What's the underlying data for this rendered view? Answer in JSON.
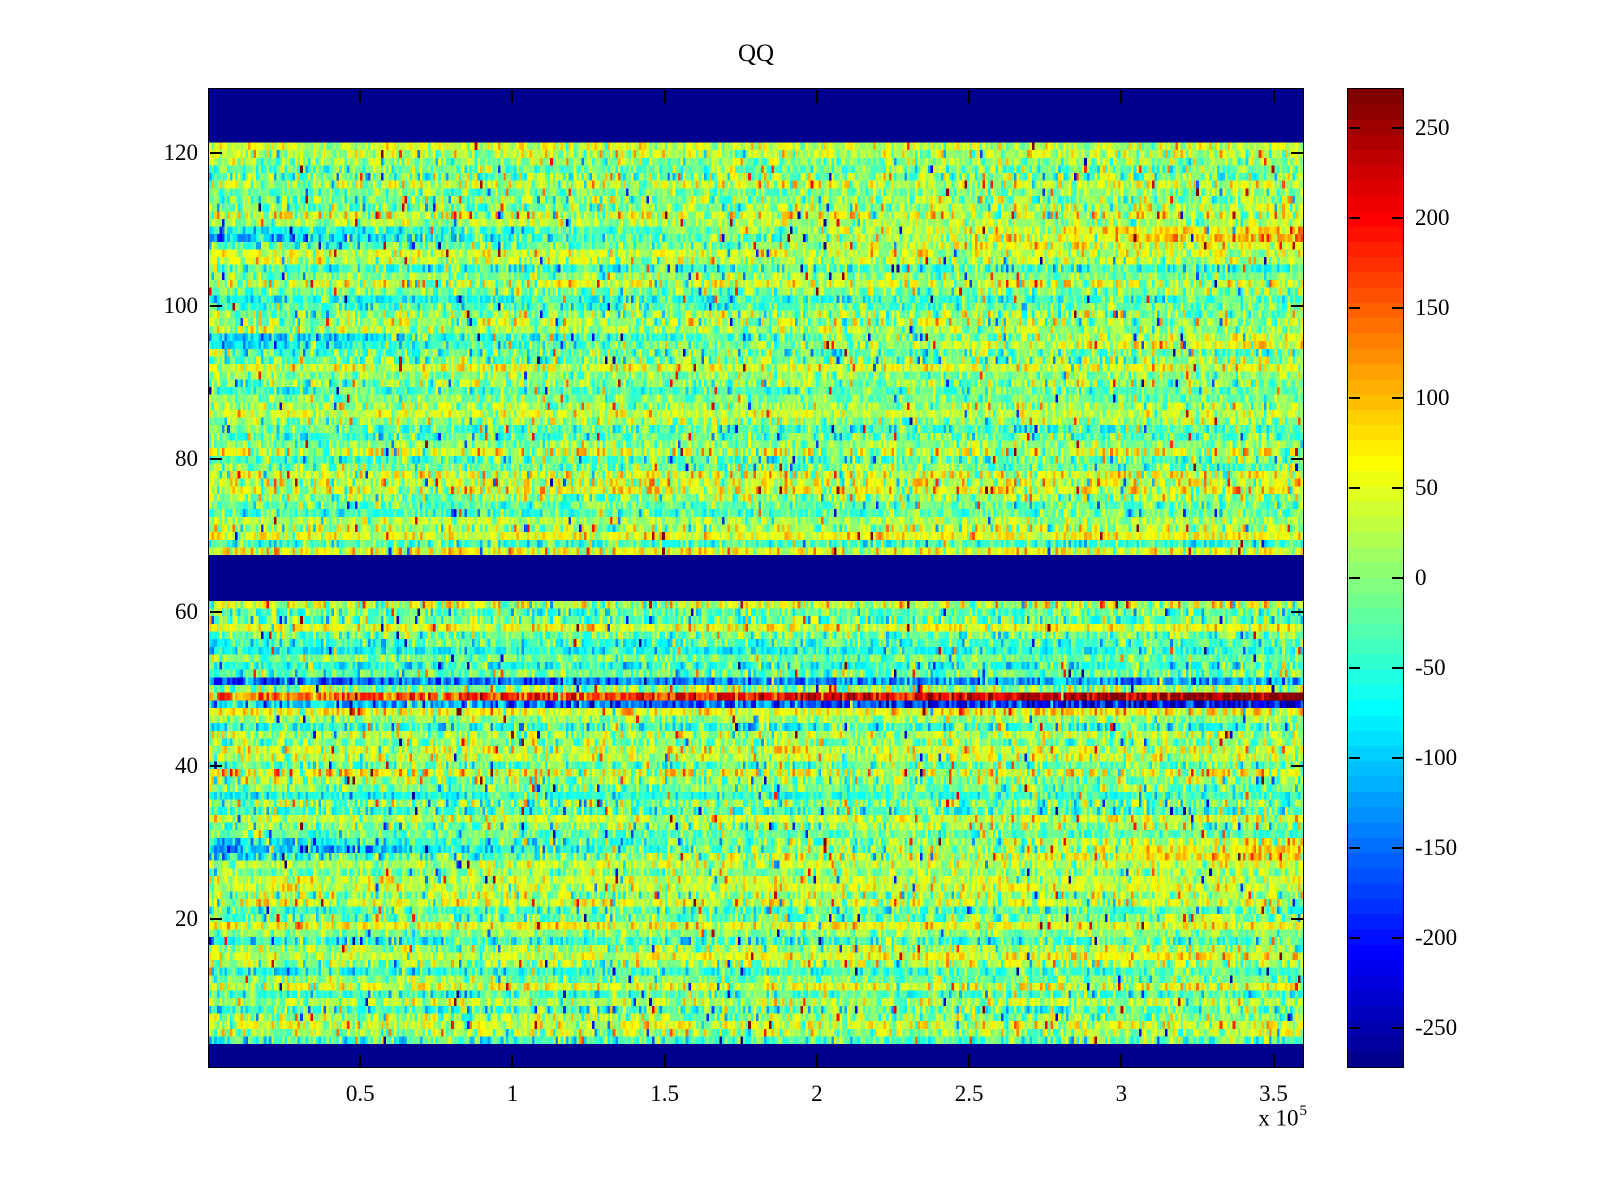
{
  "chart_data": {
    "type": "heatmap",
    "title": "QQ",
    "colormap": "jet",
    "colors": {
      "background": "#ffffff",
      "axis": "#000000",
      "masked_band": "#000090"
    },
    "x_axis": {
      "tick_labels": [
        "0.5",
        "1",
        "1.5",
        "2",
        "2.5",
        "3",
        "3.5"
      ],
      "tick_values": [
        0.5,
        1,
        1.5,
        2,
        2.5,
        3,
        3.5
      ],
      "tick_multiplier": 100000,
      "range": [
        0,
        360000
      ],
      "exponent_base": "x 10",
      "exponent_power": "5"
    },
    "y_axis": {
      "tick_labels": [
        "20",
        "40",
        "60",
        "80",
        "100",
        "120"
      ],
      "tick_values": [
        20,
        40,
        60,
        80,
        100,
        120
      ],
      "range": [
        0.5,
        128.5
      ]
    },
    "colorbar": {
      "tick_labels": [
        "250",
        "200",
        "150",
        "100",
        "50",
        "0",
        "-50",
        "-100",
        "-150",
        "-200",
        "-250"
      ],
      "tick_values": [
        250,
        200,
        150,
        100,
        50,
        0,
        -50,
        -100,
        -150,
        -200,
        -250
      ],
      "range": [
        -272,
        272
      ],
      "levels": 64,
      "position": "right"
    },
    "grid": {
      "rows": 128,
      "cols": 420,
      "grid_lines": false,
      "legend": false
    },
    "masked_row_bands": [
      [
        1,
        3
      ],
      [
        62,
        67
      ],
      [
        122,
        128
      ]
    ],
    "generation": {
      "seed": 1337,
      "cell_sigma": 45,
      "row_bias_sigma": 22,
      "row_sigma_min_factor": 0.72,
      "row_sigma_spread": 0.55,
      "outlier_prob": 0.022,
      "outlier_base": 110,
      "outlier_spread": 70,
      "upper_region_rows": [
        68,
        121
      ],
      "upper_region_bias": 8
    },
    "feature_rows": [
      [
        121,
        30,
        25
      ],
      [
        120,
        15,
        20
      ],
      [
        118,
        -30,
        -15
      ],
      [
        116,
        20,
        30
      ],
      [
        113,
        -25,
        15
      ],
      [
        110,
        -90,
        80
      ],
      [
        109,
        -120,
        95
      ],
      [
        108,
        -55,
        50
      ],
      [
        105,
        -45,
        -55
      ],
      [
        103,
        25,
        30
      ],
      [
        101,
        -75,
        -35
      ],
      [
        100,
        -55,
        -20
      ],
      [
        96,
        -95,
        35
      ],
      [
        95,
        -80,
        55
      ],
      [
        92,
        25,
        40
      ],
      [
        89,
        -45,
        -25
      ],
      [
        86,
        30,
        20
      ],
      [
        83,
        -35,
        -30
      ],
      [
        80,
        -45,
        -20
      ],
      [
        78,
        25,
        40
      ],
      [
        76,
        35,
        45
      ],
      [
        73,
        -50,
        -20
      ],
      [
        70,
        40,
        55
      ],
      [
        68,
        50,
        40
      ],
      [
        61,
        30,
        30
      ],
      [
        58,
        60,
        50
      ],
      [
        56,
        -40,
        -30
      ],
      [
        55,
        -75,
        -45
      ],
      [
        53,
        -45,
        -55
      ],
      [
        51,
        -165,
        -115
      ],
      [
        50,
        5,
        15
      ],
      [
        49,
        135,
        262
      ],
      [
        48,
        -85,
        -232
      ],
      [
        47,
        55,
        65
      ],
      [
        45,
        -55,
        -35
      ],
      [
        42,
        30,
        40
      ],
      [
        39,
        55,
        45
      ],
      [
        36,
        -65,
        -35
      ],
      [
        33,
        25,
        35
      ],
      [
        30,
        -75,
        50
      ],
      [
        29,
        -115,
        75
      ],
      [
        28,
        -55,
        85
      ],
      [
        25,
        35,
        30
      ],
      [
        22,
        45,
        35
      ],
      [
        19,
        60,
        50
      ],
      [
        17,
        -55,
        -30
      ],
      [
        15,
        30,
        65
      ],
      [
        13,
        -60,
        -25
      ],
      [
        11,
        40,
        50
      ],
      [
        8,
        -45,
        -20
      ],
      [
        6,
        35,
        40
      ],
      [
        4,
        -40,
        -25
      ]
    ]
  }
}
